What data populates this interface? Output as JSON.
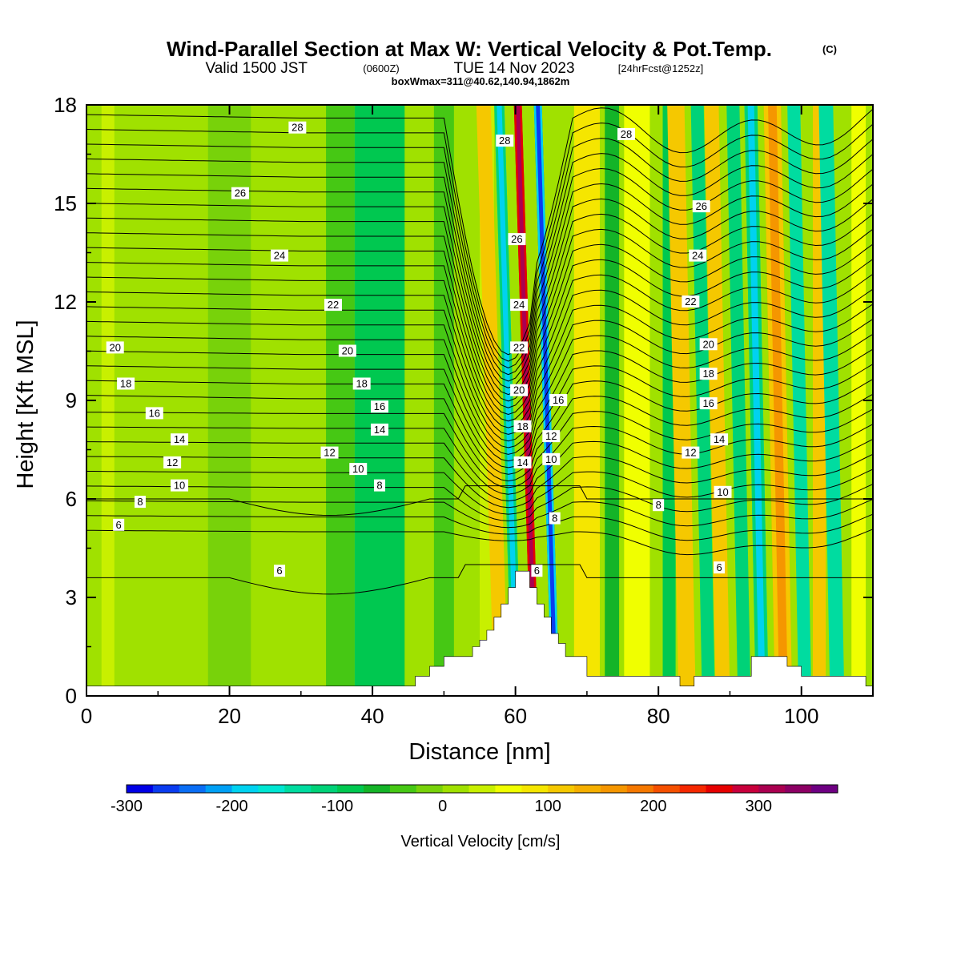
{
  "header": {
    "title_main": "Wind-Parallel Section at Max W: Vertical Velocity & Pot.Temp.",
    "title_copyright": "(C)",
    "subtitle_valid": "Valid 1500 JST",
    "subtitle_utc": "(0600Z)",
    "subtitle_date": "TUE 14 Nov 2023",
    "subtitle_fcst": "[24hrFcst@1252z]",
    "boxline": "boxWmax=311@40.62,140.94,1862m"
  },
  "chart_data": {
    "type": "heatmap",
    "xlabel": "Distance [nm]",
    "ylabel": "Height [Kft MSL]",
    "xlim": [
      0,
      110
    ],
    "ylim": [
      0,
      18
    ],
    "x_ticks": [
      "0",
      "20",
      "40",
      "60",
      "80",
      "100"
    ],
    "y_ticks": [
      "0",
      "3",
      "6",
      "9",
      "12",
      "15",
      "18"
    ],
    "x_tick_values": [
      0,
      20,
      40,
      60,
      80,
      100
    ],
    "y_tick_values": [
      0,
      3,
      6,
      9,
      12,
      15,
      18
    ],
    "grid": false,
    "colorbar": {
      "label": "Vertical Velocity [cm/s]",
      "tick_labels": [
        "-300",
        "-200",
        "-100",
        "0",
        "100",
        "200",
        "300"
      ],
      "tick_values": [
        -300,
        -200,
        -100,
        0,
        100,
        200,
        300
      ],
      "range": [
        -300,
        375
      ],
      "step": 25,
      "colors": [
        "#0000e6",
        "#0a3cf0",
        "#0a6ef5",
        "#00a0f5",
        "#00d2f0",
        "#00e6d2",
        "#00dca0",
        "#00d278",
        "#00c850",
        "#14b428",
        "#46c814",
        "#78d20a",
        "#a0e100",
        "#c8f000",
        "#f0ff00",
        "#f5e600",
        "#f5c800",
        "#f5af00",
        "#f59600",
        "#f57800",
        "#f55000",
        "#f52800",
        "#e60000",
        "#c8003c",
        "#aa0050",
        "#8c0064",
        "#6e0082"
      ]
    },
    "terrain_profile": [
      [
        0,
        0.3
      ],
      [
        46,
        0.3
      ],
      [
        46,
        0.6
      ],
      [
        48,
        0.6
      ],
      [
        48,
        0.9
      ],
      [
        50,
        0.9
      ],
      [
        50,
        1.2
      ],
      [
        54,
        1.2
      ],
      [
        54,
        1.5
      ],
      [
        55,
        1.5
      ],
      [
        55,
        1.7
      ],
      [
        56,
        1.7
      ],
      [
        56,
        2.0
      ],
      [
        57,
        2.0
      ],
      [
        57,
        2.4
      ],
      [
        58,
        2.4
      ],
      [
        58,
        2.8
      ],
      [
        59,
        2.8
      ],
      [
        59,
        3.3
      ],
      [
        60,
        3.3
      ],
      [
        60,
        3.8
      ],
      [
        62,
        3.8
      ],
      [
        62,
        3.3
      ],
      [
        63,
        3.3
      ],
      [
        63,
        2.8
      ],
      [
        64,
        2.8
      ],
      [
        64,
        2.4
      ],
      [
        65,
        2.4
      ],
      [
        65,
        1.9
      ],
      [
        66,
        1.9
      ],
      [
        66,
        1.6
      ],
      [
        67,
        1.6
      ],
      [
        67,
        1.2
      ],
      [
        70,
        1.2
      ],
      [
        70,
        0.6
      ],
      [
        83,
        0.6
      ],
      [
        83,
        0.3
      ],
      [
        85,
        0.3
      ],
      [
        85,
        0.6
      ],
      [
        93,
        0.6
      ],
      [
        93,
        1.2
      ],
      [
        98,
        1.2
      ],
      [
        98,
        0.9
      ],
      [
        100,
        0.9
      ],
      [
        100,
        0.6
      ],
      [
        109,
        0.6
      ],
      [
        109,
        0.3
      ],
      [
        110,
        0.3
      ]
    ],
    "velocity_bands": [
      {
        "x": 1.8,
        "w": 0.4,
        "value": 10
      },
      {
        "x": 3.0,
        "w": 0.9,
        "value": 40
      },
      {
        "x": 10.5,
        "w": 0.8,
        "value": 15
      },
      {
        "x": 20.0,
        "w": 3.0,
        "value": -20
      },
      {
        "x": 27.0,
        "w": 2.5,
        "value": 15
      },
      {
        "x": 35.5,
        "w": 2.0,
        "value": -30
      },
      {
        "x": 41.0,
        "w": 3.5,
        "value": -80
      },
      {
        "x": 50.0,
        "w": 1.4,
        "value": -40
      },
      {
        "x": 56.0,
        "w": 1.0,
        "value": 40
      },
      {
        "x": 58.0,
        "w": 1.0,
        "value": 120
      },
      {
        "x": 60.2,
        "w": 0.7,
        "value": -180
      },
      {
        "x": 62.8,
        "w": 0.55,
        "value": 311
      },
      {
        "x": 65.6,
        "w": 0.55,
        "value": -260
      },
      {
        "x": 70.0,
        "w": 1.8,
        "value": 90
      },
      {
        "x": 73.5,
        "w": 1.0,
        "value": -60
      },
      {
        "x": 77.0,
        "w": 1.8,
        "value": 60
      },
      {
        "x": 81.5,
        "w": 0.9,
        "value": -100
      },
      {
        "x": 84.0,
        "w": 1.2,
        "value": 110
      },
      {
        "x": 87.0,
        "w": 0.9,
        "value": -110
      },
      {
        "x": 89.0,
        "w": 1.0,
        "value": 110
      },
      {
        "x": 92.0,
        "w": 0.9,
        "value": -120
      },
      {
        "x": 94.5,
        "w": 0.9,
        "value": -180
      },
      {
        "x": 97.5,
        "w": 1.2,
        "value": 160
      },
      {
        "x": 100.5,
        "w": 0.9,
        "value": -130
      },
      {
        "x": 102.5,
        "w": 0.9,
        "value": 100
      },
      {
        "x": 105.0,
        "w": 1.0,
        "value": -130
      },
      {
        "x": 108.0,
        "w": 1.0,
        "value": 60
      }
    ],
    "theta_contours": [
      {
        "label": "28",
        "labels_at": [
          [
            29.5,
            17.3
          ],
          [
            58.5,
            16.9
          ],
          [
            75.5,
            17.1
          ]
        ]
      },
      {
        "label": "26",
        "labels_at": [
          [
            21.5,
            15.3
          ],
          [
            60.2,
            13.9
          ],
          [
            86.0,
            14.9
          ]
        ]
      },
      {
        "label": "24",
        "labels_at": [
          [
            27.0,
            13.4
          ],
          [
            60.5,
            11.9
          ],
          [
            85.5,
            13.4
          ]
        ]
      },
      {
        "label": "22",
        "labels_at": [
          [
            34.5,
            11.9
          ],
          [
            60.5,
            10.6
          ],
          [
            84.5,
            12.0
          ]
        ]
      },
      {
        "label": "20",
        "labels_at": [
          [
            4.0,
            10.6
          ],
          [
            36.5,
            10.5
          ],
          [
            60.5,
            9.3
          ],
          [
            87.0,
            10.7
          ]
        ]
      },
      {
        "label": "18",
        "labels_at": [
          [
            5.5,
            9.5
          ],
          [
            38.5,
            9.5
          ],
          [
            61.0,
            8.2
          ],
          [
            87.0,
            9.8
          ]
        ]
      },
      {
        "label": "16",
        "labels_at": [
          [
            9.5,
            8.6
          ],
          [
            41.0,
            8.8
          ],
          [
            66.0,
            9.0
          ],
          [
            87.0,
            8.9
          ]
        ]
      },
      {
        "label": "14",
        "labels_at": [
          [
            13.0,
            7.8
          ],
          [
            41.0,
            8.1
          ],
          [
            61.0,
            7.1
          ],
          [
            88.5,
            7.8
          ]
        ]
      },
      {
        "label": "12",
        "labels_at": [
          [
            12.0,
            7.1
          ],
          [
            34.0,
            7.4
          ],
          [
            65.0,
            7.9
          ],
          [
            84.5,
            7.4
          ]
        ]
      },
      {
        "label": "10",
        "labels_at": [
          [
            13.0,
            6.4
          ],
          [
            38.0,
            6.9
          ],
          [
            65.0,
            7.2
          ],
          [
            89.0,
            6.2
          ]
        ]
      },
      {
        "label": "8",
        "labels_at": [
          [
            7.5,
            5.9
          ],
          [
            41.0,
            6.4
          ],
          [
            65.5,
            5.4
          ],
          [
            80.0,
            5.8
          ]
        ]
      },
      {
        "label": "6",
        "labels_at": [
          [
            4.5,
            5.2
          ],
          [
            27.0,
            3.8
          ],
          [
            63.0,
            3.8
          ],
          [
            88.5,
            3.9
          ]
        ]
      }
    ]
  }
}
